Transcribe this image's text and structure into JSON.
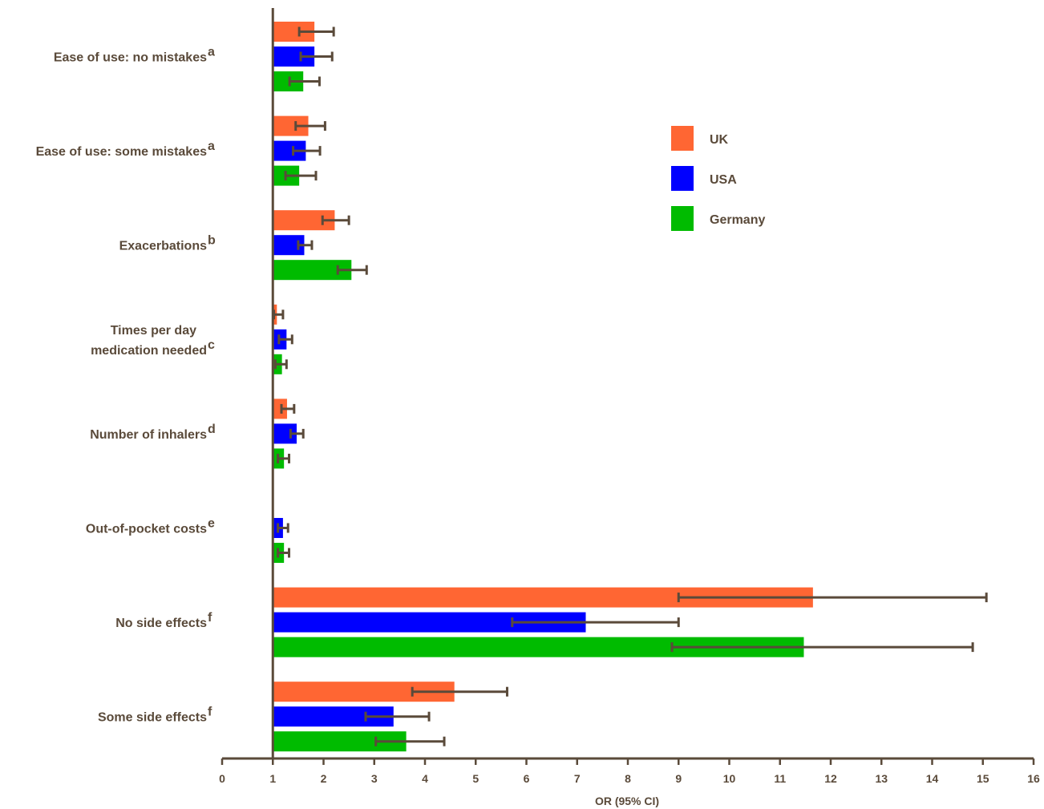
{
  "chart_data": {
    "type": "bar",
    "orientation": "horizontal",
    "title": "",
    "xlabel": "OR (95% CI)",
    "ylabel": "",
    "xlim": [
      0,
      16
    ],
    "x_ticks": [
      0,
      1,
      2,
      3,
      4,
      5,
      6,
      7,
      8,
      9,
      10,
      11,
      12,
      13,
      14,
      15,
      16
    ],
    "reference_line": 1,
    "grid": false,
    "legend_position": "right",
    "categories": [
      {
        "lines": [
          "Ease of use: no mistakes"
        ],
        "sup": "a"
      },
      {
        "lines": [
          "Ease of use: some mistakes"
        ],
        "sup": "a"
      },
      {
        "lines": [
          "Exacerbations"
        ],
        "sup": "b"
      },
      {
        "lines": [
          "Times per day",
          "medication needed"
        ],
        "sup": "c"
      },
      {
        "lines": [
          "Number of inhalers"
        ],
        "sup": "d"
      },
      {
        "lines": [
          "Out-of-pocket costs"
        ],
        "sup": "e"
      },
      {
        "lines": [
          "No side effects"
        ],
        "sup": "f"
      },
      {
        "lines": [
          "Some side effects"
        ],
        "sup": "f"
      }
    ],
    "series": [
      {
        "name": "UK",
        "color": "#ff6633",
        "values": [
          1.82,
          1.7,
          2.22,
          1.08,
          1.28,
          null,
          11.65,
          4.58
        ],
        "ci_low": [
          1.52,
          1.45,
          1.98,
          1.02,
          1.17,
          null,
          9.0,
          3.75
        ],
        "ci_high": [
          2.2,
          2.03,
          2.5,
          1.2,
          1.42,
          null,
          15.07,
          5.62
        ]
      },
      {
        "name": "USA",
        "color": "#0000ff",
        "values": [
          1.82,
          1.65,
          1.62,
          1.27,
          1.47,
          1.2,
          7.17,
          3.38
        ],
        "ci_low": [
          1.55,
          1.4,
          1.5,
          1.12,
          1.35,
          1.1,
          5.72,
          2.83
        ],
        "ci_high": [
          2.17,
          1.93,
          1.77,
          1.38,
          1.6,
          1.3,
          9.0,
          4.08
        ]
      },
      {
        "name": "Germany",
        "color": "#00bb00",
        "values": [
          1.6,
          1.52,
          2.55,
          1.18,
          1.22,
          1.22,
          11.47,
          3.63
        ],
        "ci_low": [
          1.33,
          1.25,
          2.28,
          1.05,
          1.1,
          1.1,
          8.87,
          3.03
        ],
        "ci_high": [
          1.92,
          1.85,
          2.85,
          1.27,
          1.32,
          1.32,
          14.8,
          4.38
        ]
      }
    ]
  }
}
